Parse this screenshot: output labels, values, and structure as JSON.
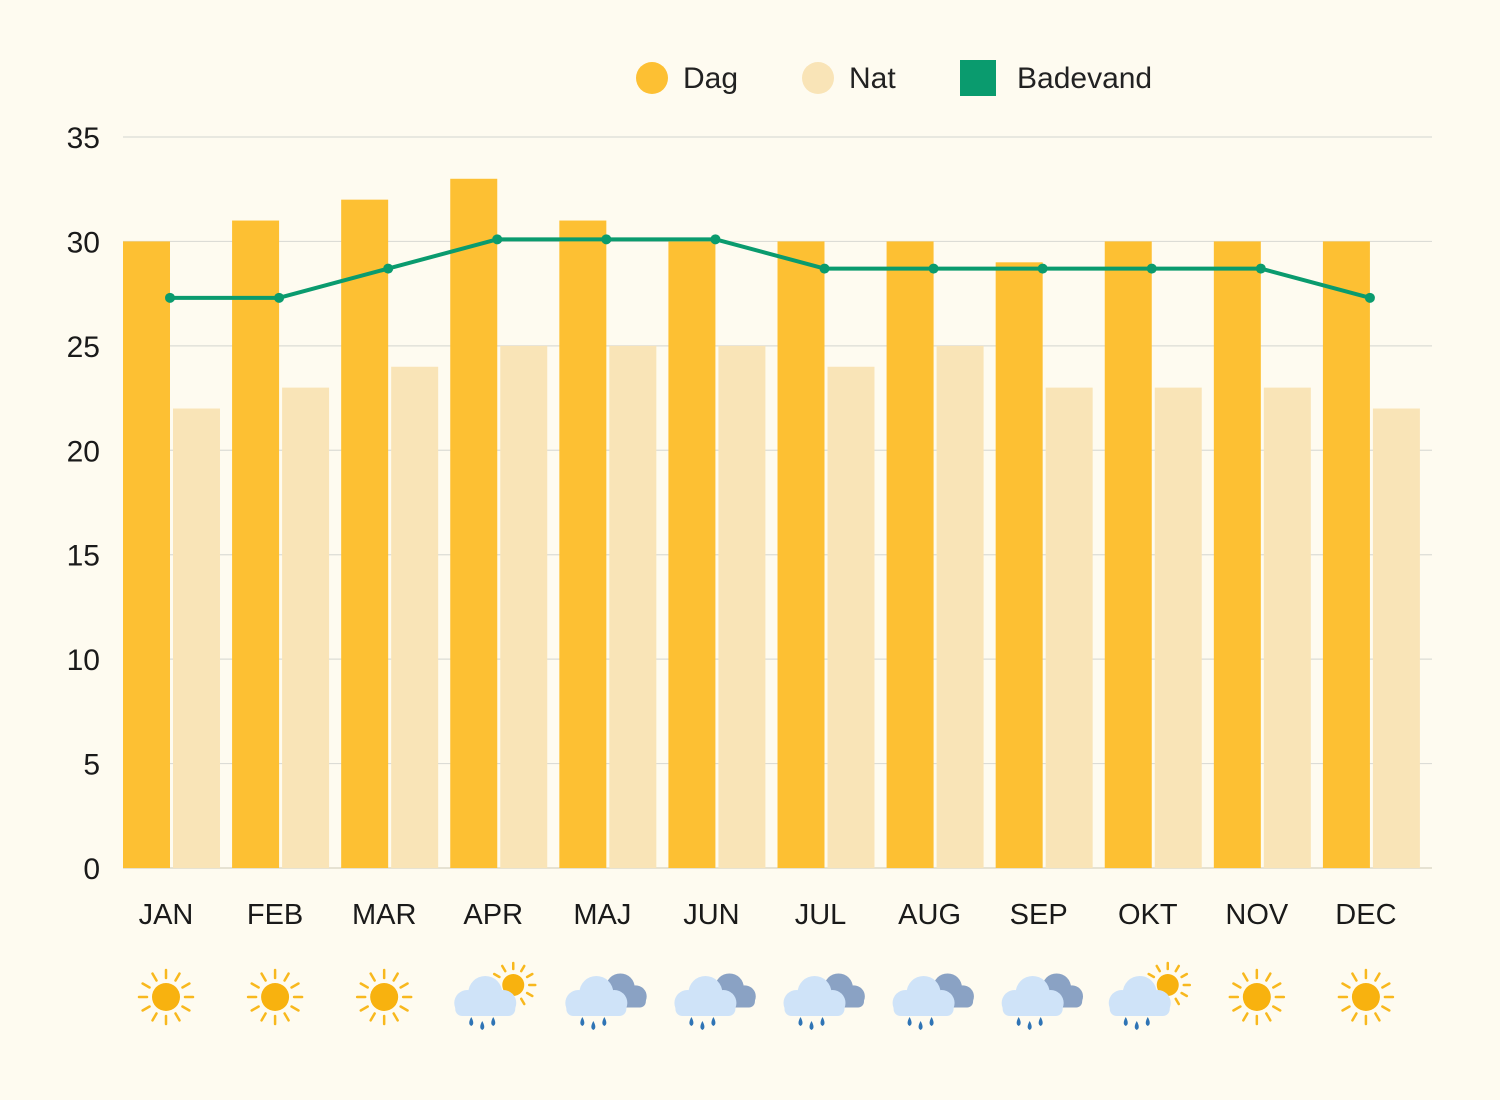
{
  "chart_data": {
    "type": "bar",
    "categories": [
      "JAN",
      "FEB",
      "MAR",
      "APR",
      "MAJ",
      "JUN",
      "JUL",
      "AUG",
      "SEP",
      "OKT",
      "NOV",
      "DEC"
    ],
    "series": [
      {
        "name": "Dag",
        "type": "bar",
        "color": "#fdc033",
        "values": [
          30,
          31,
          32,
          33,
          31,
          30,
          30,
          30,
          29,
          30,
          30,
          30
        ]
      },
      {
        "name": "Nat",
        "type": "bar",
        "color": "#f9e4b7",
        "values": [
          22,
          23,
          24,
          25,
          25,
          25,
          24,
          25,
          23,
          23,
          23,
          22
        ]
      },
      {
        "name": "Badevand",
        "type": "line",
        "color": "#0a9b6e",
        "values": [
          27.3,
          27.3,
          28.7,
          30.1,
          30.1,
          30.1,
          28.7,
          28.7,
          28.7,
          28.7,
          28.7,
          27.3
        ]
      }
    ],
    "ylim": [
      0,
      35
    ],
    "yticks": [
      0,
      5,
      10,
      15,
      20,
      25,
      30,
      35
    ],
    "grid": true,
    "legend_position": "top",
    "weather_icons": [
      "sun-icon",
      "sun-icon",
      "sun-icon",
      "rain-sun-icon",
      "rain-icon",
      "rain-icon",
      "rain-icon",
      "rain-icon",
      "rain-icon",
      "rain-sun-icon",
      "sun-icon",
      "sun-icon"
    ]
  }
}
